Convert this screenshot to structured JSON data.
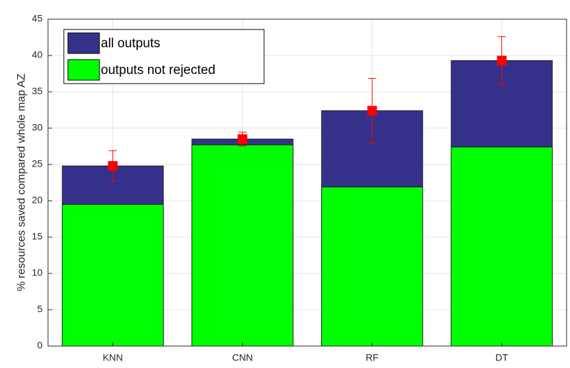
{
  "chart_data": {
    "type": "bar",
    "y_label": "% resources saved compared whole map AZ",
    "categories": [
      "KNN",
      "CNN",
      "RF",
      "DT"
    ],
    "series": [
      {
        "name": "all outputs",
        "color": "#35318a",
        "values": [
          24.8,
          28.5,
          32.4,
          39.3
        ],
        "errors": [
          2.1,
          0.95,
          4.45,
          3.3
        ],
        "error_color": "#ff0000"
      },
      {
        "name": "outputs not rejected",
        "color": "#00ff00",
        "values": [
          19.5,
          27.7,
          21.9,
          27.4
        ]
      }
    ],
    "ylim": [
      0,
      45
    ],
    "yticks": [
      0,
      5,
      10,
      15,
      20,
      25,
      30,
      35,
      40,
      45
    ],
    "grid": true,
    "legend": "top-left"
  }
}
